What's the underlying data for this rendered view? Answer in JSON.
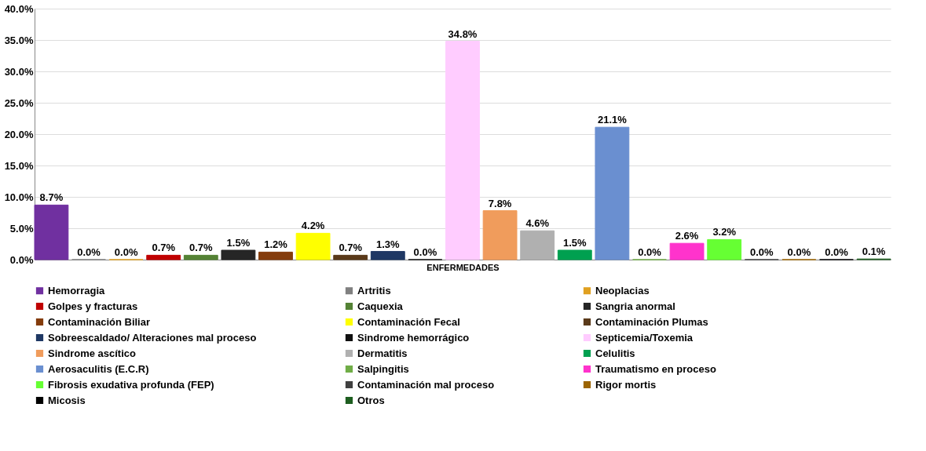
{
  "chart_data": {
    "type": "bar",
    "xlabel": "ENFERMEDADES",
    "categories": [
      null
    ],
    "ylim": [
      0,
      40
    ],
    "yticks": [
      {
        "value": 0,
        "label": "0.0%"
      },
      {
        "value": 5,
        "label": "5.0%"
      },
      {
        "value": 10,
        "label": "10.0%"
      },
      {
        "value": 15,
        "label": "15.0%"
      },
      {
        "value": 20,
        "label": "20.0%"
      },
      {
        "value": 25,
        "label": "25.0%"
      },
      {
        "value": 30,
        "label": "30.0%"
      },
      {
        "value": 35,
        "label": "35.0%"
      },
      {
        "value": 40,
        "label": "40.0%"
      }
    ],
    "grid": "y",
    "legend": "bottom",
    "series": [
      {
        "name": "Hemorragia",
        "color": "#7030a0",
        "values": [
          8.7
        ],
        "value_labels": [
          "8.7%"
        ]
      },
      {
        "name": "Artritis",
        "color": "#808080",
        "values": [
          0.0
        ],
        "value_labels": [
          "0.0%"
        ]
      },
      {
        "name": "Neoplacias",
        "color": "#e0a020",
        "values": [
          0.0
        ],
        "value_labels": [
          "0.0%"
        ]
      },
      {
        "name": "Golpes y fracturas",
        "color": "#c00000",
        "values": [
          0.7
        ],
        "value_labels": [
          "0.7%"
        ]
      },
      {
        "name": "Caquexia",
        "color": "#548235",
        "values": [
          0.7
        ],
        "value_labels": [
          "0.7%"
        ]
      },
      {
        "name": "Sangria anormal",
        "color": "#262626",
        "values": [
          1.5
        ],
        "value_labels": [
          "1.5%"
        ]
      },
      {
        "name": "Contaminación Biliar",
        "color": "#843c0c",
        "values": [
          1.2
        ],
        "value_labels": [
          "1.2%"
        ]
      },
      {
        "name": "Contaminación Fecal",
        "color": "#ffff00",
        "values": [
          4.2
        ],
        "value_labels": [
          "4.2%"
        ]
      },
      {
        "name": "Contaminación Plumas",
        "color": "#5a3a1a",
        "values": [
          0.7
        ],
        "value_labels": [
          "0.7%"
        ]
      },
      {
        "name": "Sobreescaldado/ Alteraciones mal proceso",
        "color": "#1f3864",
        "values": [
          1.3
        ],
        "value_labels": [
          "1.3%"
        ]
      },
      {
        "name": "Sindrome hemorrágico",
        "color": "#101010",
        "values": [
          0.0
        ],
        "value_labels": [
          "0.0%"
        ]
      },
      {
        "name": "Septicemia/Toxemia",
        "color": "#ffccff",
        "values": [
          34.8
        ],
        "value_labels": [
          "34.8%"
        ]
      },
      {
        "name": "Sindrome ascítico",
        "color": "#f09c5c",
        "values": [
          7.8
        ],
        "value_labels": [
          "7.8%"
        ]
      },
      {
        "name": "Dermatitis",
        "color": "#b0b0b0",
        "values": [
          4.6
        ],
        "value_labels": [
          "4.6%"
        ]
      },
      {
        "name": "Celulitis",
        "color": "#00a050",
        "values": [
          1.5
        ],
        "value_labels": [
          "1.5%"
        ]
      },
      {
        "name": "Aerosaculitis (E.C.R)",
        "color": "#6a8fd0",
        "values": [
          21.1
        ],
        "value_labels": [
          "21.1%"
        ]
      },
      {
        "name": "Salpingitis",
        "color": "#70ad47",
        "values": [
          0.0
        ],
        "value_labels": [
          "0.0%"
        ]
      },
      {
        "name": "Traumatismo en proceso",
        "color": "#ff33cc",
        "values": [
          2.6
        ],
        "value_labels": [
          "2.6%"
        ]
      },
      {
        "name": "Fibrosis exudativa profunda (FEP)",
        "color": "#66ff33",
        "values": [
          3.2
        ],
        "value_labels": [
          "3.2%"
        ]
      },
      {
        "name": "Contaminación mal proceso",
        "color": "#404040",
        "values": [
          0.0
        ],
        "value_labels": [
          "0.0%"
        ]
      },
      {
        "name": "Rigor mortis",
        "color": "#9c6500",
        "values": [
          0.0
        ],
        "value_labels": [
          "0.0%"
        ]
      },
      {
        "name": "Micosis",
        "color": "#000000",
        "values": [
          0.0
        ],
        "value_labels": [
          "0.0%"
        ]
      },
      {
        "name": "Otros",
        "color": "#1e5e20",
        "values": [
          0.1
        ],
        "value_labels": [
          "0.1%"
        ]
      }
    ]
  }
}
